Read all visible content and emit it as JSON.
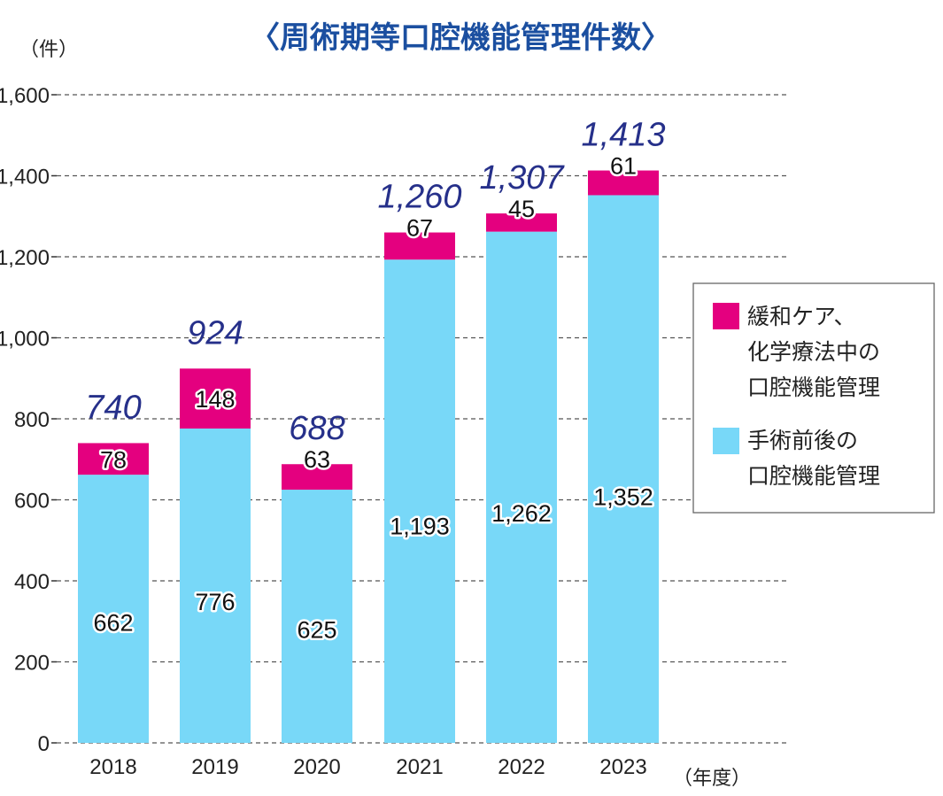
{
  "chart_data": {
    "type": "bar",
    "stacked": true,
    "title": "〈周術期等口腔機能管理件数〉",
    "ylabel": "（件）",
    "xlabel": "（年度）",
    "ylim": [
      0,
      1600
    ],
    "yticks": [
      0,
      200,
      400,
      600,
      800,
      1000,
      1200,
      1400,
      1600
    ],
    "ytick_labels": [
      "0",
      "200",
      "400",
      "600",
      "800",
      "1,000",
      "1,200",
      "1,400",
      "1,600"
    ],
    "grid": true,
    "categories": [
      "2018",
      "2019",
      "2020",
      "2021",
      "2022",
      "2023"
    ],
    "series": [
      {
        "name": "手術前後の口腔機能管理",
        "legend_lines": [
          "手術前後の",
          "口腔機能管理"
        ],
        "color": "#78d8f8",
        "values": [
          662,
          776,
          625,
          1193,
          1262,
          1352
        ],
        "labels": [
          "662",
          "776",
          "625",
          "1,193",
          "1,262",
          "1,352"
        ]
      },
      {
        "name": "緩和ケア、化学療法中の口腔機能管理",
        "legend_lines": [
          "緩和ケア、",
          "化学療法中の",
          "口腔機能管理"
        ],
        "color": "#e4007f",
        "values": [
          78,
          148,
          63,
          67,
          45,
          61
        ],
        "labels": [
          "78",
          "148",
          "63",
          "67",
          "45",
          "61"
        ]
      }
    ],
    "totals": [
      740,
      924,
      688,
      1260,
      1307,
      1413
    ],
    "total_labels": [
      "740",
      "924",
      "688",
      "1,260",
      "1,307",
      "1,413"
    ],
    "legend_position": "right"
  },
  "colors": {
    "title": "#1b4fa0",
    "totals": "#26308a",
    "grid": "#555555",
    "axis": "#333333"
  }
}
